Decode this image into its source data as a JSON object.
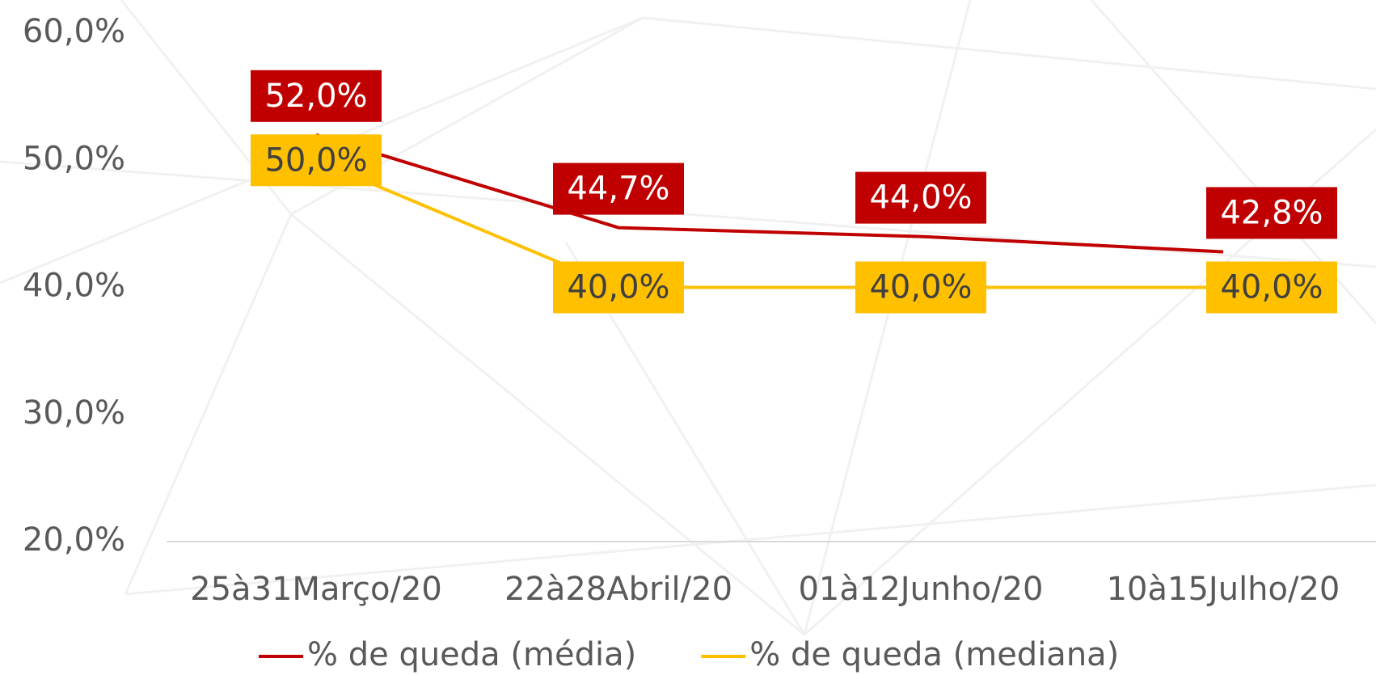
{
  "chart_data": {
    "type": "line",
    "categories": [
      "25à31Março/20",
      "22à28Abril/20",
      "01à12Junho/20",
      "10à15Julho/20"
    ],
    "series": [
      {
        "name": "% de queda (média)",
        "color": "#c00000",
        "values": [
          52.0,
          44.7,
          44.0,
          42.8
        ],
        "value_labels": [
          "52,0%",
          "44,7%",
          "44,0%",
          "42,8%"
        ]
      },
      {
        "name": "% de queda (mediana)",
        "color": "#ffc000",
        "values": [
          50.0,
          40.0,
          40.0,
          40.0
        ],
        "value_labels": [
          "50,0%",
          "40,0%",
          "40,0%",
          "40,0%"
        ]
      }
    ],
    "ylim": [
      20,
      60
    ],
    "yticks": [
      {
        "value": 20,
        "label": "20,0%"
      },
      {
        "value": 30,
        "label": "30,0%"
      },
      {
        "value": 40,
        "label": "40,0%"
      },
      {
        "value": 50,
        "label": "50,0%"
      },
      {
        "value": 60,
        "label": "60,0%"
      }
    ],
    "grid": false,
    "legend": "bottom"
  }
}
